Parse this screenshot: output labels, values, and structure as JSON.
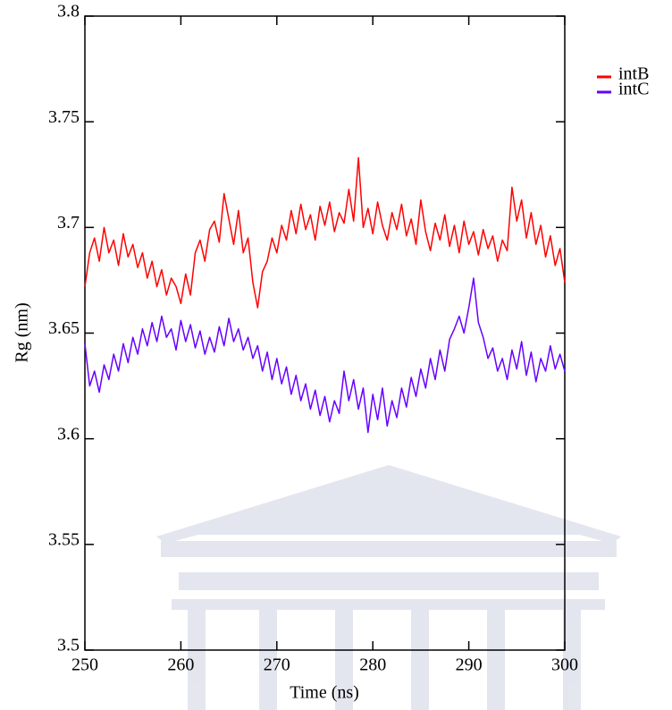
{
  "chart_data": {
    "type": "line",
    "xlabel": "Time (ns)",
    "ylabel": "Rg (nm)",
    "x": [
      250,
      250.5,
      251,
      251.5,
      252,
      252.5,
      253,
      253.5,
      254,
      254.5,
      255,
      255.5,
      256,
      256.5,
      257,
      257.5,
      258,
      258.5,
      259,
      259.5,
      260,
      260.5,
      261,
      261.5,
      262,
      262.5,
      263,
      263.5,
      264,
      264.5,
      265,
      265.5,
      266,
      266.5,
      267,
      267.5,
      268,
      268.5,
      269,
      269.5,
      270,
      270.5,
      271,
      271.5,
      272,
      272.5,
      273,
      273.5,
      274,
      274.5,
      275,
      275.5,
      276,
      276.5,
      277,
      277.5,
      278,
      278.5,
      279,
      279.5,
      280,
      280.5,
      281,
      281.5,
      282,
      282.5,
      283,
      283.5,
      284,
      284.5,
      285,
      285.5,
      286,
      286.5,
      287,
      287.5,
      288,
      288.5,
      289,
      289.5,
      290,
      290.5,
      291,
      291.5,
      292,
      292.5,
      293,
      293.5,
      294,
      294.5,
      295,
      295.5,
      296,
      296.5,
      297,
      297.5,
      298,
      298.5,
      299,
      299.5,
      300
    ],
    "series": [
      {
        "name": "intB",
        "color": "#ff0000",
        "values": [
          3.672,
          3.688,
          3.695,
          3.684,
          3.7,
          3.688,
          3.694,
          3.682,
          3.697,
          3.686,
          3.692,
          3.681,
          3.688,
          3.676,
          3.684,
          3.672,
          3.68,
          3.668,
          3.676,
          3.672,
          3.664,
          3.678,
          3.668,
          3.688,
          3.694,
          3.684,
          3.699,
          3.703,
          3.693,
          3.716,
          3.704,
          3.692,
          3.708,
          3.688,
          3.695,
          3.674,
          3.662,
          3.679,
          3.684,
          3.695,
          3.688,
          3.701,
          3.694,
          3.708,
          3.697,
          3.711,
          3.699,
          3.706,
          3.694,
          3.71,
          3.701,
          3.712,
          3.698,
          3.707,
          3.702,
          3.718,
          3.703,
          3.733,
          3.7,
          3.709,
          3.697,
          3.712,
          3.701,
          3.694,
          3.707,
          3.699,
          3.711,
          3.696,
          3.704,
          3.692,
          3.713,
          3.698,
          3.689,
          3.702,
          3.694,
          3.706,
          3.691,
          3.701,
          3.688,
          3.703,
          3.692,
          3.698,
          3.687,
          3.699,
          3.69,
          3.696,
          3.684,
          3.694,
          3.689,
          3.719,
          3.703,
          3.713,
          3.695,
          3.707,
          3.692,
          3.701,
          3.686,
          3.696,
          3.682,
          3.69,
          3.674
        ]
      },
      {
        "name": "intC",
        "color": "#6600ff",
        "values": [
          3.645,
          3.625,
          3.632,
          3.622,
          3.635,
          3.628,
          3.64,
          3.632,
          3.645,
          3.636,
          3.648,
          3.64,
          3.652,
          3.644,
          3.655,
          3.646,
          3.658,
          3.648,
          3.652,
          3.642,
          3.656,
          3.646,
          3.654,
          3.643,
          3.651,
          3.64,
          3.648,
          3.641,
          3.653,
          3.644,
          3.657,
          3.646,
          3.652,
          3.642,
          3.648,
          3.638,
          3.644,
          3.632,
          3.641,
          3.628,
          3.638,
          3.626,
          3.634,
          3.621,
          3.63,
          3.618,
          3.626,
          3.614,
          3.623,
          3.611,
          3.62,
          3.608,
          3.618,
          3.612,
          3.632,
          3.618,
          3.628,
          3.614,
          3.624,
          3.603,
          3.621,
          3.609,
          3.624,
          3.606,
          3.618,
          3.61,
          3.624,
          3.615,
          3.629,
          3.62,
          3.633,
          3.624,
          3.638,
          3.628,
          3.642,
          3.632,
          3.647,
          3.652,
          3.658,
          3.65,
          3.662,
          3.676,
          3.655,
          3.648,
          3.638,
          3.643,
          3.632,
          3.638,
          3.628,
          3.642,
          3.633,
          3.646,
          3.63,
          3.641,
          3.627,
          3.638,
          3.632,
          3.644,
          3.633,
          3.64,
          3.632
        ]
      }
    ],
    "xlim": [
      250,
      300
    ],
    "xticks": [
      250,
      260,
      270,
      280,
      290,
      300
    ],
    "ylim": [
      3.5,
      3.8
    ],
    "yticks": [
      3.5,
      3.55,
      3.6,
      3.65,
      3.7,
      3.75,
      3.8
    ],
    "legend": "right"
  }
}
